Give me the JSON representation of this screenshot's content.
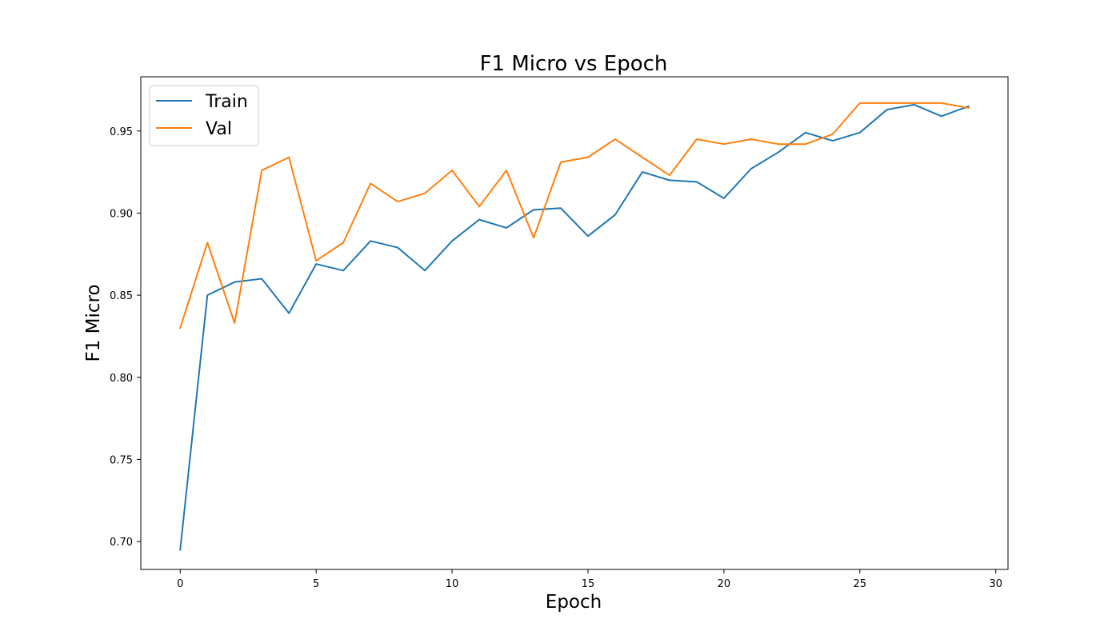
{
  "chart_data": {
    "type": "line",
    "title": "F1 Micro vs Epoch",
    "xlabel": "Epoch",
    "ylabel": "F1 Micro",
    "xlim": [
      -1.45,
      30.45
    ],
    "ylim": [
      0.683,
      0.983
    ],
    "xticks": [
      0,
      5,
      10,
      15,
      20,
      25,
      30
    ],
    "yticks": [
      0.7,
      0.75,
      0.8,
      0.85,
      0.9,
      0.95
    ],
    "ytick_labels": [
      "0.70",
      "0.75",
      "0.80",
      "0.85",
      "0.90",
      "0.95"
    ],
    "xtick_labels": [
      "0",
      "5",
      "10",
      "15",
      "20",
      "25",
      "30"
    ],
    "grid": false,
    "legend_position": "top-left",
    "x": [
      0,
      1,
      2,
      3,
      4,
      5,
      6,
      7,
      8,
      9,
      10,
      11,
      12,
      13,
      14,
      15,
      16,
      17,
      18,
      19,
      20,
      21,
      22,
      23,
      24,
      25,
      26,
      27,
      28,
      29
    ],
    "series": [
      {
        "name": "Train",
        "color": "#1f77b4",
        "values": [
          0.695,
          0.85,
          0.858,
          0.86,
          0.839,
          0.869,
          0.865,
          0.883,
          0.879,
          0.865,
          0.883,
          0.896,
          0.891,
          0.902,
          0.903,
          0.886,
          0.899,
          0.925,
          0.92,
          0.919,
          0.909,
          0.927,
          0.937,
          0.949,
          0.944,
          0.949,
          0.963,
          0.966,
          0.959,
          0.965
        ]
      },
      {
        "name": "Val",
        "color": "#ff7f0e",
        "values": [
          0.83,
          0.882,
          0.833,
          0.926,
          0.934,
          0.871,
          0.882,
          0.918,
          0.907,
          0.912,
          0.926,
          0.904,
          0.926,
          0.885,
          0.931,
          0.934,
          0.945,
          0.934,
          0.923,
          0.945,
          0.942,
          0.945,
          0.942,
          0.942,
          0.948,
          0.967,
          0.967,
          0.967,
          0.967,
          0.964
        ]
      }
    ]
  }
}
